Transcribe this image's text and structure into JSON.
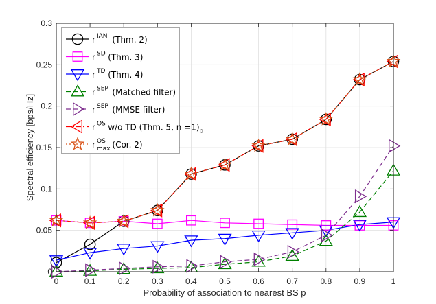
{
  "chart_data": {
    "type": "line",
    "title": "",
    "xlabel": "Probability of association to nearest BS p",
    "ylabel": "Spectral efficiency [bps/Hz]",
    "xlim": [
      0,
      1
    ],
    "ylim": [
      0,
      0.3
    ],
    "grid": true,
    "legend_position": "top-left",
    "x_ticks": [
      "0",
      "0.1",
      "0.2",
      "0.3",
      "0.4",
      "0.5",
      "0.6",
      "0.7",
      "0.8",
      "0.9",
      "1"
    ],
    "y_ticks": [
      "0",
      "0.05",
      "0.1",
      "0.15",
      "0.2",
      "0.25",
      "0.3"
    ],
    "x": [
      0,
      0.1,
      0.2,
      0.3,
      0.4,
      0.5,
      0.6,
      0.7,
      0.8,
      0.9,
      1.0
    ],
    "series": [
      {
        "name": "IAN",
        "legend_base": "r",
        "legend_sup": "IAN",
        "legend_sub": "",
        "legend_text": " (Thm. 2)",
        "color": "#000000",
        "dash": "solid",
        "marker": "circle",
        "values": [
          0.011,
          0.033,
          0.061,
          0.074,
          0.118,
          0.129,
          0.152,
          0.16,
          0.184,
          0.232,
          0.254
        ]
      },
      {
        "name": "SD",
        "legend_base": "r",
        "legend_sup": "SD",
        "legend_sub": "",
        "legend_text": " (Thm. 3)",
        "color": "#ff00ff",
        "dash": "solid",
        "marker": "square",
        "values": [
          0.062,
          0.059,
          0.061,
          0.058,
          0.062,
          0.059,
          0.058,
          0.057,
          0.056,
          0.056,
          0.056
        ]
      },
      {
        "name": "TD",
        "legend_base": "r",
        "legend_sup": "TD",
        "legend_sub": "",
        "legend_text": " (Thm. 4)",
        "color": "#0000ff",
        "dash": "solid",
        "marker": "triangle-down",
        "values": [
          0.014,
          0.023,
          0.028,
          0.031,
          0.038,
          0.04,
          0.044,
          0.047,
          0.05,
          0.057,
          0.06
        ]
      },
      {
        "name": "SEP matched",
        "legend_base": "r",
        "legend_sup": "SEP",
        "legend_sub": "",
        "legend_text": " (Matched filter)",
        "color": "#008000",
        "dash": "dashed",
        "marker": "triangle-up",
        "values": [
          0.0,
          0.001,
          0.003,
          0.004,
          0.005,
          0.009,
          0.012,
          0.019,
          0.037,
          0.072,
          0.122
        ]
      },
      {
        "name": "SEP MMSE",
        "legend_base": "r",
        "legend_sup": "SEP",
        "legend_sub": "",
        "legend_text": " (MMSE filter)",
        "color": "#7e2f8e",
        "dash": "dashed",
        "marker": "triangle-right",
        "values": [
          0.0,
          0.002,
          0.004,
          0.006,
          0.007,
          0.012,
          0.015,
          0.024,
          0.044,
          0.091,
          0.152
        ]
      },
      {
        "name": "OS w/o TD",
        "legend_base": "r",
        "legend_sup": "OS",
        "legend_sub": "",
        "legend_text": " w/o TD (Thm. 5, n  =1)",
        "legend_sub_after": "p",
        "color": "#ff0000",
        "dash": "dashdot",
        "marker": "triangle-left",
        "values": [
          0.062,
          0.059,
          0.061,
          0.074,
          0.118,
          0.129,
          0.152,
          0.16,
          0.184,
          0.232,
          0.254
        ]
      },
      {
        "name": "OS max",
        "legend_base": "r",
        "legend_sup": "OS",
        "legend_sub": "max",
        "legend_text": " (Cor. 2)",
        "color": "#d95319",
        "dash": "dotted",
        "marker": "star",
        "values": [
          0.062,
          0.059,
          0.061,
          0.074,
          0.118,
          0.129,
          0.152,
          0.16,
          0.184,
          0.232,
          0.254
        ]
      }
    ]
  }
}
